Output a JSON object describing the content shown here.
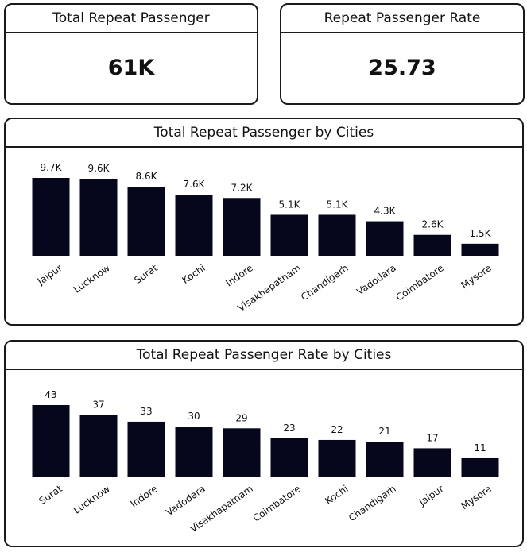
{
  "kpis": [
    {
      "title": "Total Repeat Passenger",
      "value": "61K"
    },
    {
      "title": "Repeat Passenger Rate",
      "value": "25.73"
    }
  ],
  "colors": {
    "bar": "#06061c",
    "text": "#111111"
  },
  "chart_data": [
    {
      "type": "bar",
      "title": "Total Repeat Passenger by Cities",
      "xlabel": "",
      "ylabel": "",
      "categories": [
        "Jaipur",
        "Lucknow",
        "Surat",
        "Kochi",
        "Indore",
        "Visakhapatnam",
        "Chandigarh",
        "Vadodara",
        "Coimbatore",
        "Mysore"
      ],
      "values": [
        9.7,
        9.6,
        8.6,
        7.6,
        7.2,
        5.1,
        5.1,
        4.3,
        2.6,
        1.5
      ],
      "labels": [
        "9.7K",
        "9.6K",
        "8.6K",
        "7.6K",
        "7.2K",
        "5.1K",
        "5.1K",
        "4.3K",
        "2.6K",
        "1.5K"
      ],
      "unit": "K",
      "ylim": [
        0,
        9.7
      ]
    },
    {
      "type": "bar",
      "title": "Total Repeat Passenger Rate by Cities",
      "xlabel": "",
      "ylabel": "",
      "categories": [
        "Surat",
        "Lucknow",
        "Indore",
        "Vadodara",
        "Visakhapatnam",
        "Coimbatore",
        "Kochi",
        "Chandigarh",
        "Jaipur",
        "Mysore"
      ],
      "values": [
        43,
        37,
        33,
        30,
        29,
        23,
        22,
        21,
        17,
        11
      ],
      "labels": [
        "43",
        "37",
        "33",
        "30",
        "29",
        "23",
        "22",
        "21",
        "17",
        "11"
      ],
      "ylim": [
        0,
        43
      ]
    }
  ]
}
